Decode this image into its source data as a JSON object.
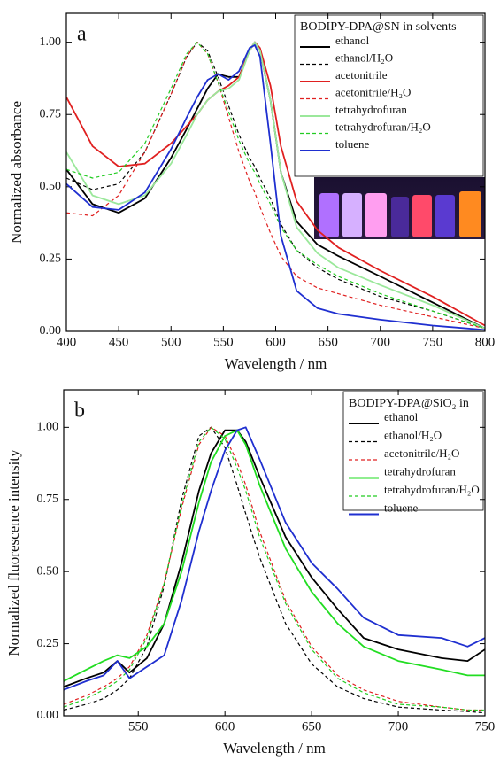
{
  "chart_data": [
    {
      "type": "line",
      "label": "a",
      "xlabel": "Wavelength / nm",
      "ylabel": "Normalized absorbance",
      "legend_title": "BODIPY-DPA@SN in solvents",
      "legend": "upper right",
      "xlim": [
        400,
        800
      ],
      "xticks": [
        400,
        450,
        500,
        550,
        600,
        650,
        700,
        750,
        800
      ],
      "ylim": [
        0,
        1.1
      ],
      "yticks": [
        {
          "value": 0,
          "label": "0.00"
        },
        {
          "value": 0.25,
          "label": "0.25"
        },
        {
          "value": 0.5,
          "label": "0.50"
        },
        {
          "value": 0.75,
          "label": "0.75"
        },
        {
          "value": 1,
          "label": "1.00"
        }
      ],
      "x": [
        400,
        425,
        450,
        475,
        500,
        515,
        525,
        535,
        545,
        555,
        565,
        575,
        580,
        585,
        595,
        605,
        620,
        640,
        660,
        700,
        750,
        800
      ],
      "series": [
        {
          "name": "ethanol",
          "color": "#000000",
          "dashed": false,
          "values": [
            0.56,
            0.44,
            0.41,
            0.46,
            0.6,
            0.7,
            0.77,
            0.84,
            0.89,
            0.88,
            0.88,
            0.97,
            1.0,
            0.97,
            0.8,
            0.55,
            0.38,
            0.3,
            0.26,
            0.19,
            0.1,
            0.01
          ]
        },
        {
          "name": "ethanol/H₂O",
          "color": "#000000",
          "dashed": true,
          "values": [
            0.53,
            0.49,
            0.51,
            0.62,
            0.82,
            0.95,
            1.0,
            0.97,
            0.88,
            0.78,
            0.68,
            0.6,
            0.57,
            0.53,
            0.46,
            0.37,
            0.28,
            0.22,
            0.18,
            0.12,
            0.07,
            0.01
          ]
        },
        {
          "name": "acetonitrile",
          "color": "#e02020",
          "dashed": false,
          "values": [
            0.81,
            0.64,
            0.57,
            0.58,
            0.65,
            0.71,
            0.75,
            0.8,
            0.83,
            0.85,
            0.88,
            0.97,
            1.0,
            0.98,
            0.85,
            0.64,
            0.45,
            0.35,
            0.29,
            0.21,
            0.12,
            0.02
          ]
        },
        {
          "name": "acetonitrile/H₂O",
          "color": "#e02020",
          "dashed": true,
          "values": [
            0.41,
            0.4,
            0.47,
            0.62,
            0.82,
            0.95,
            1.0,
            0.96,
            0.86,
            0.74,
            0.62,
            0.52,
            0.48,
            0.43,
            0.34,
            0.26,
            0.19,
            0.15,
            0.13,
            0.09,
            0.05,
            0.01
          ]
        },
        {
          "name": "tetrahydrofuran",
          "color": "#9be89b",
          "dashed": false,
          "values": [
            0.62,
            0.47,
            0.44,
            0.47,
            0.58,
            0.68,
            0.75,
            0.8,
            0.83,
            0.84,
            0.87,
            0.97,
            1.0,
            0.97,
            0.8,
            0.55,
            0.36,
            0.27,
            0.22,
            0.16,
            0.09,
            0.01
          ]
        },
        {
          "name": "tetrahydrofuran/H₂O",
          "color": "#22cc22",
          "dashed": true,
          "values": [
            0.56,
            0.53,
            0.55,
            0.65,
            0.84,
            0.96,
            1.0,
            0.96,
            0.86,
            0.76,
            0.66,
            0.58,
            0.55,
            0.51,
            0.44,
            0.36,
            0.28,
            0.23,
            0.19,
            0.13,
            0.07,
            0.01
          ]
        },
        {
          "name": "toluene",
          "color": "#1f2fd0",
          "dashed": false,
          "values": [
            0.51,
            0.43,
            0.42,
            0.48,
            0.63,
            0.74,
            0.81,
            0.87,
            0.89,
            0.87,
            0.9,
            0.98,
            0.99,
            0.95,
            0.65,
            0.33,
            0.14,
            0.08,
            0.06,
            0.04,
            0.02,
            0.005
          ]
        }
      ]
    },
    {
      "type": "line",
      "label": "b",
      "xlabel": "Wavelength / nm",
      "ylabel": "Normalized fluorescence intensity",
      "legend_title": "BODIPY-DPA@SiO₂ in",
      "legend": "upper right",
      "xlim": [
        507,
        750
      ],
      "xticks": [
        550,
        600,
        650,
        700,
        750
      ],
      "ylim": [
        0,
        1.13
      ],
      "yticks": [
        {
          "value": 0,
          "label": "0.00"
        },
        {
          "value": 0.25,
          "label": "0.25"
        },
        {
          "value": 0.5,
          "label": "0.50"
        },
        {
          "value": 0.75,
          "label": "0.75"
        },
        {
          "value": 1,
          "label": "1.00"
        }
      ],
      "x": [
        507,
        520,
        530,
        538,
        545,
        555,
        565,
        575,
        585,
        592,
        600,
        607,
        612,
        620,
        635,
        650,
        665,
        680,
        700,
        725,
        740,
        750
      ],
      "series": [
        {
          "name": "ethanol",
          "color": "#000000",
          "dashed": false,
          "values": [
            0.1,
            0.13,
            0.15,
            0.19,
            0.15,
            0.2,
            0.32,
            0.53,
            0.78,
            0.91,
            0.99,
            0.99,
            0.95,
            0.83,
            0.62,
            0.48,
            0.37,
            0.27,
            0.23,
            0.2,
            0.19,
            0.23
          ]
        },
        {
          "name": "ethanol/H₂O",
          "color": "#000000",
          "dashed": true,
          "values": [
            0.02,
            0.04,
            0.06,
            0.09,
            0.13,
            0.24,
            0.45,
            0.75,
            0.97,
            1.0,
            0.93,
            0.8,
            0.7,
            0.55,
            0.32,
            0.18,
            0.1,
            0.06,
            0.03,
            0.02,
            0.015,
            0.01
          ]
        },
        {
          "name": "acetonitrile/H₂O",
          "color": "#e02020",
          "dashed": true,
          "values": [
            0.04,
            0.07,
            0.1,
            0.13,
            0.17,
            0.28,
            0.46,
            0.72,
            0.94,
            1.0,
            0.97,
            0.88,
            0.8,
            0.64,
            0.4,
            0.24,
            0.14,
            0.09,
            0.05,
            0.03,
            0.02,
            0.02
          ]
        },
        {
          "name": "tetrahydrofuran",
          "color": "#22dd22",
          "dashed": false,
          "values": [
            0.12,
            0.16,
            0.19,
            0.21,
            0.2,
            0.24,
            0.32,
            0.5,
            0.74,
            0.88,
            0.97,
            0.99,
            0.94,
            0.8,
            0.58,
            0.43,
            0.32,
            0.24,
            0.19,
            0.16,
            0.14,
            0.14
          ]
        },
        {
          "name": "tetrahydrofuran/H₂O",
          "color": "#22cc22",
          "dashed": true,
          "values": [
            0.03,
            0.06,
            0.09,
            0.12,
            0.16,
            0.27,
            0.46,
            0.73,
            0.95,
            1.0,
            0.96,
            0.86,
            0.78,
            0.62,
            0.39,
            0.23,
            0.13,
            0.08,
            0.04,
            0.03,
            0.02,
            0.02
          ]
        },
        {
          "name": "toluene",
          "color": "#1f2fd0",
          "dashed": false,
          "values": [
            0.09,
            0.12,
            0.14,
            0.19,
            0.13,
            0.17,
            0.21,
            0.4,
            0.64,
            0.78,
            0.92,
            0.99,
            1.0,
            0.89,
            0.67,
            0.53,
            0.44,
            0.34,
            0.28,
            0.27,
            0.24,
            0.27
          ]
        }
      ]
    }
  ]
}
